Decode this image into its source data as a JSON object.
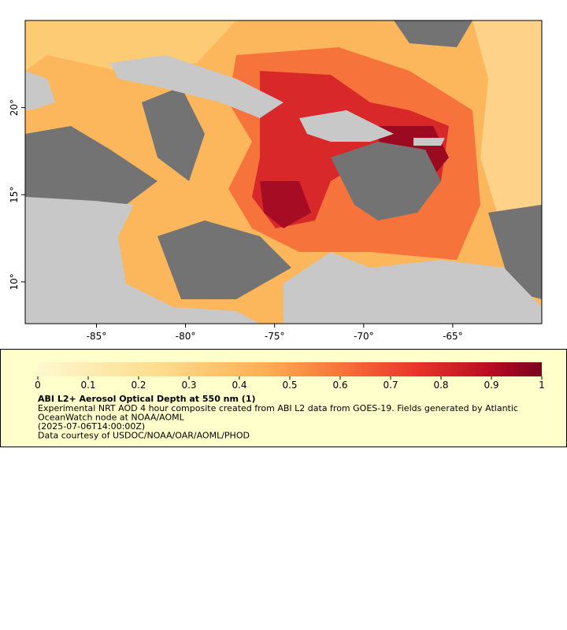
{
  "map": {
    "xlim": [
      -89,
      -60
    ],
    "ylim": [
      7.6,
      25
    ],
    "xticks": [
      {
        "value": -85,
        "label": "-85°"
      },
      {
        "value": -80,
        "label": "-80°"
      },
      {
        "value": -75,
        "label": "-75°"
      },
      {
        "value": -70,
        "label": "-70°"
      },
      {
        "value": -65,
        "label": "-65°"
      }
    ],
    "yticks": [
      {
        "value": 10,
        "label": "10°"
      },
      {
        "value": 15,
        "label": "15°"
      },
      {
        "value": 20,
        "label": "20°"
      }
    ]
  },
  "legend": {
    "colorbar": {
      "lim": [
        0,
        1
      ],
      "ticks": [
        0,
        0.1,
        0.2,
        0.3,
        0.4,
        0.5,
        0.6,
        0.7,
        0.8,
        0.9,
        1
      ]
    },
    "title": "ABI L2+ Aerosol Optical Depth at 550 nm (1)",
    "lines": [
      "Experimental NRT AOD 4 hour composite created from ABI L2 data from GOES-19. Fields generated by Atlantic",
      "OceanWatch node at NOAA/AOML",
      "(2025-07-06T14:00:00Z)",
      "Data courtesy of USDOC/NOAA/OAR/AOML/PHOD"
    ]
  }
}
